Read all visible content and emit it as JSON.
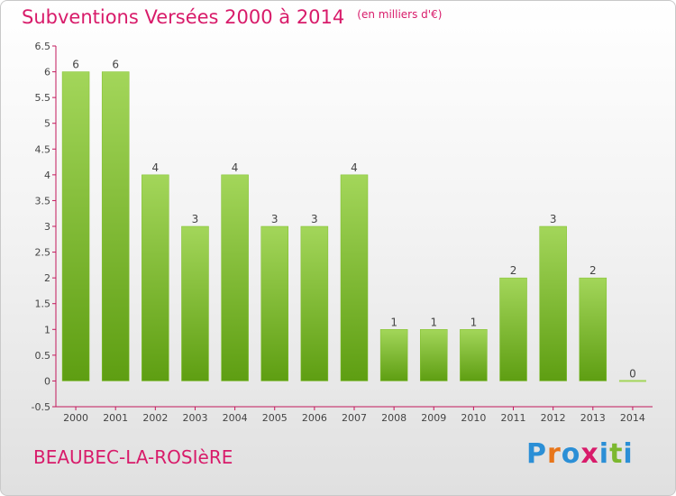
{
  "header": {
    "title": "Subventions Versées 2000 à 2014",
    "subtitle": "(en milliers d'€)"
  },
  "footer": {
    "commune": "BEAUBEC-LA-ROSIèRE",
    "logo": "Proxiti"
  },
  "colors": {
    "accent": "#d81b6a",
    "bar_light": "#a3d65a",
    "bar_dark": "#5e9e12",
    "axis": "#c2185b"
  },
  "chart_data": {
    "type": "bar",
    "title": "Subventions Versées 2000 à 2014",
    "subtitle": "(en milliers d'€)",
    "categories": [
      "2000",
      "2001",
      "2002",
      "2003",
      "2004",
      "2005",
      "2006",
      "2007",
      "2008",
      "2009",
      "2010",
      "2011",
      "2012",
      "2013",
      "2014"
    ],
    "values": [
      6,
      6,
      4,
      3,
      4,
      3,
      3,
      4,
      1,
      1,
      1,
      2,
      3,
      2,
      0
    ],
    "data_labels": [
      "6",
      "6",
      "4",
      "3",
      "4",
      "3",
      "3",
      "4",
      "1",
      "1",
      "1",
      "2",
      "3",
      "2",
      "0"
    ],
    "ylim": [
      -0.5,
      6.5
    ],
    "yticks": [
      "-0.5",
      "0",
      "0.5",
      "1",
      "1.5",
      "2",
      "2.5",
      "3",
      "3.5",
      "4",
      "4.5",
      "5",
      "5.5",
      "6",
      "6.5"
    ],
    "grid": false,
    "legend": "none"
  }
}
